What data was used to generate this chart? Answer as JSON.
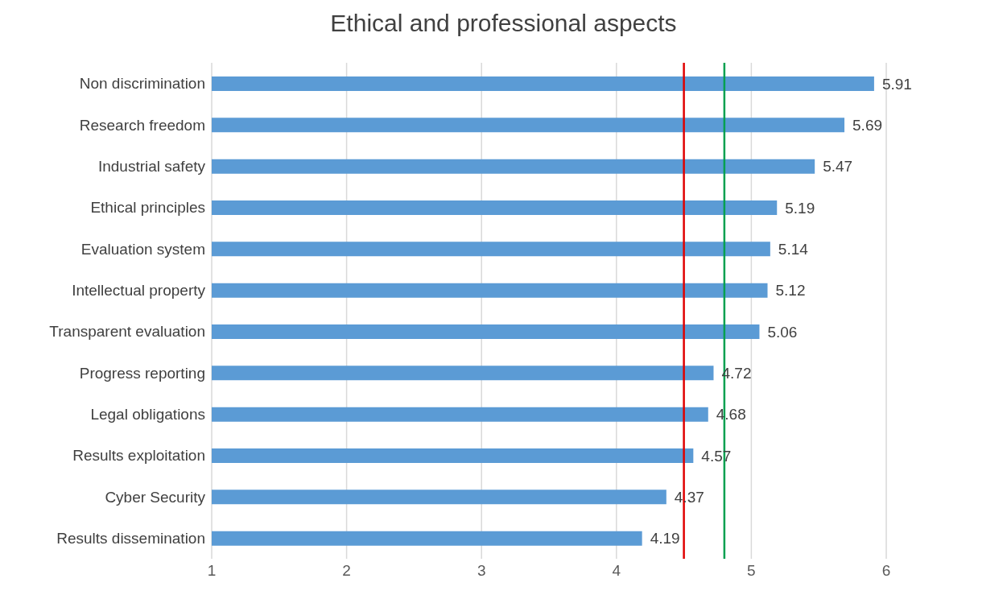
{
  "chart_data": {
    "type": "bar",
    "orientation": "horizontal",
    "title": "Ethical and professional aspects",
    "categories": [
      "Non discrimination",
      "Research freedom",
      "Industrial safety",
      "Ethical principles",
      "Evaluation system",
      "Intellectual property",
      "Transparent evaluation",
      "Progress reporting",
      "Legal obligations",
      "Results exploitation",
      "Cyber Security",
      "Results dissemination"
    ],
    "values": [
      5.91,
      5.69,
      5.47,
      5.19,
      5.14,
      5.12,
      5.06,
      4.72,
      4.68,
      4.57,
      4.37,
      4.19
    ],
    "color": "#5b9bd5",
    "xlim": [
      1,
      6
    ],
    "xticks": [
      1,
      2,
      3,
      4,
      5,
      6
    ],
    "grid": "x",
    "data_labels": true,
    "ref_lines": [
      {
        "axis": "x",
        "value": 4.5,
        "color": "#e00000"
      },
      {
        "axis": "x",
        "value": 4.8,
        "color": "#00a050"
      }
    ]
  }
}
